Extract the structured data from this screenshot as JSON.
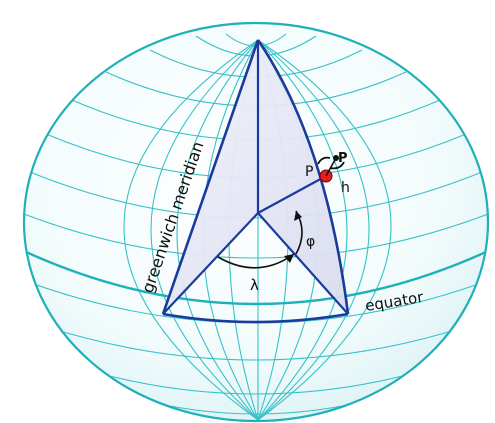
{
  "labels": {
    "greenwich_meridian": "greenwich meridian",
    "equator": "equator",
    "point_P_lower": "P",
    "point_P_upper": "P",
    "height": "h",
    "longitude": "λ",
    "latitude": "φ"
  },
  "colors": {
    "grid": "#37c2c8",
    "outline": "#1fb0b8",
    "wedge_edge": "#1a3a9c",
    "wedge_fill": "#e4e6f4",
    "point": "#e02020"
  }
}
